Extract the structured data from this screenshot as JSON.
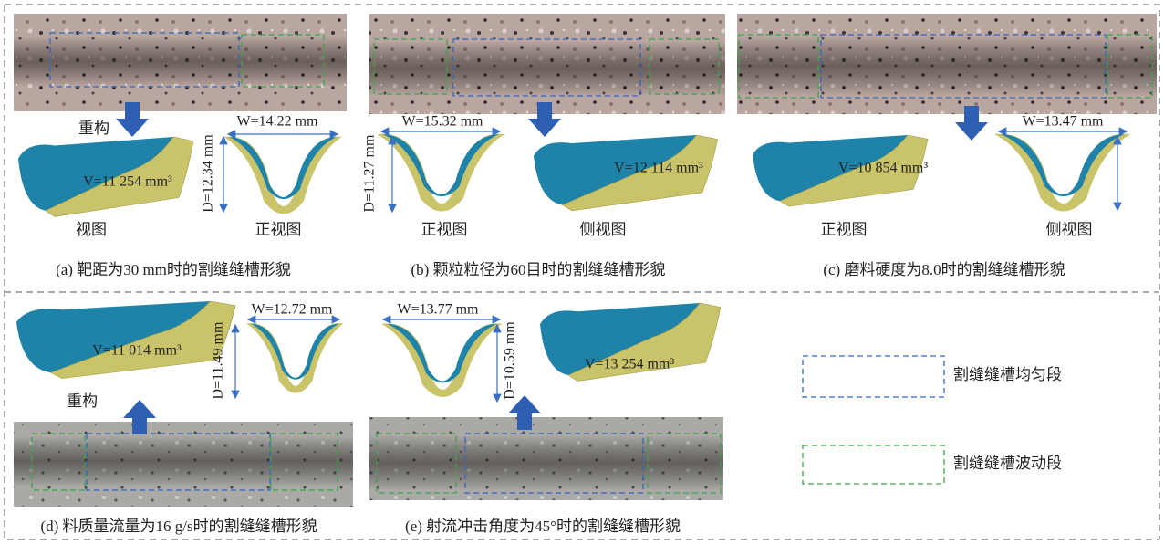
{
  "panels": [
    {
      "caption": "(a) 靶距为30 mm时的割缝缝槽形貌",
      "labels": [
        "重构",
        "视图",
        "正视图"
      ],
      "width": "W=14.22 mm",
      "depth": "D=12.34 mm",
      "volume": "V=11 254 mm³"
    },
    {
      "caption": "(b) 颗粒粒径为60目时的割缝缝槽形貌",
      "labels": [
        "正视图",
        "侧视图"
      ],
      "width": "W=15.32 mm",
      "depth": "D=11.27 mm",
      "volume": "V=12 114 mm³"
    },
    {
      "caption": "(c) 磨料硬度为8.0时的割缝缝槽形貌",
      "labels": [
        "正视图",
        "侧视图"
      ],
      "width": "W=13.47 mm",
      "volume": "V=10 854 mm³"
    },
    {
      "caption": "(d) 料质量流量为16 g/s时的割缝缝槽形貌",
      "labels": [
        "重构"
      ],
      "width": "W=12.72 mm",
      "depth": "D=11.49 mm",
      "volume": "V=11 014 mm³"
    },
    {
      "caption": "(e) 射流冲击角度为45°时的割缝缝槽形貌",
      "width": "W=13.77 mm",
      "depth": "D=10.59 mm",
      "volume": "V=13 254 mm³"
    }
  ],
  "legend": [
    "割缝缝槽均匀段",
    "割缝缝槽波动段"
  ]
}
